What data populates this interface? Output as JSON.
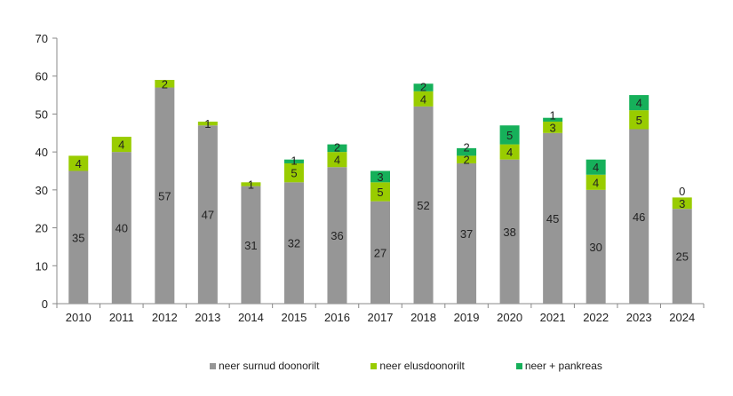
{
  "chart_data": {
    "type": "bar",
    "stacked": true,
    "title": "",
    "xlabel": "",
    "ylabel": "",
    "ylim": [
      0,
      70
    ],
    "yticks": [
      0,
      10,
      20,
      30,
      40,
      50,
      60,
      70
    ],
    "grid": false,
    "legend_position": "bottom",
    "categories": [
      "2010",
      "2011",
      "2012",
      "2013",
      "2014",
      "2015",
      "2016",
      "2017",
      "2018",
      "2019",
      "2020",
      "2021",
      "2022",
      "2023",
      "2024"
    ],
    "series": [
      {
        "name": "neer surnud doonorilt",
        "color": "#969696",
        "values": [
          35,
          40,
          57,
          47,
          31,
          32,
          36,
          27,
          52,
          37,
          38,
          45,
          30,
          46,
          25
        ]
      },
      {
        "name": "neer elusdoonorilt",
        "color": "#99cc00",
        "values": [
          4,
          4,
          2,
          1,
          1,
          5,
          4,
          5,
          4,
          2,
          4,
          3,
          4,
          5,
          3
        ]
      },
      {
        "name": "neer + pankreas",
        "color": "#16b05a",
        "values": [
          null,
          null,
          null,
          null,
          null,
          1,
          2,
          3,
          2,
          2,
          5,
          1,
          4,
          4,
          0
        ]
      }
    ]
  }
}
